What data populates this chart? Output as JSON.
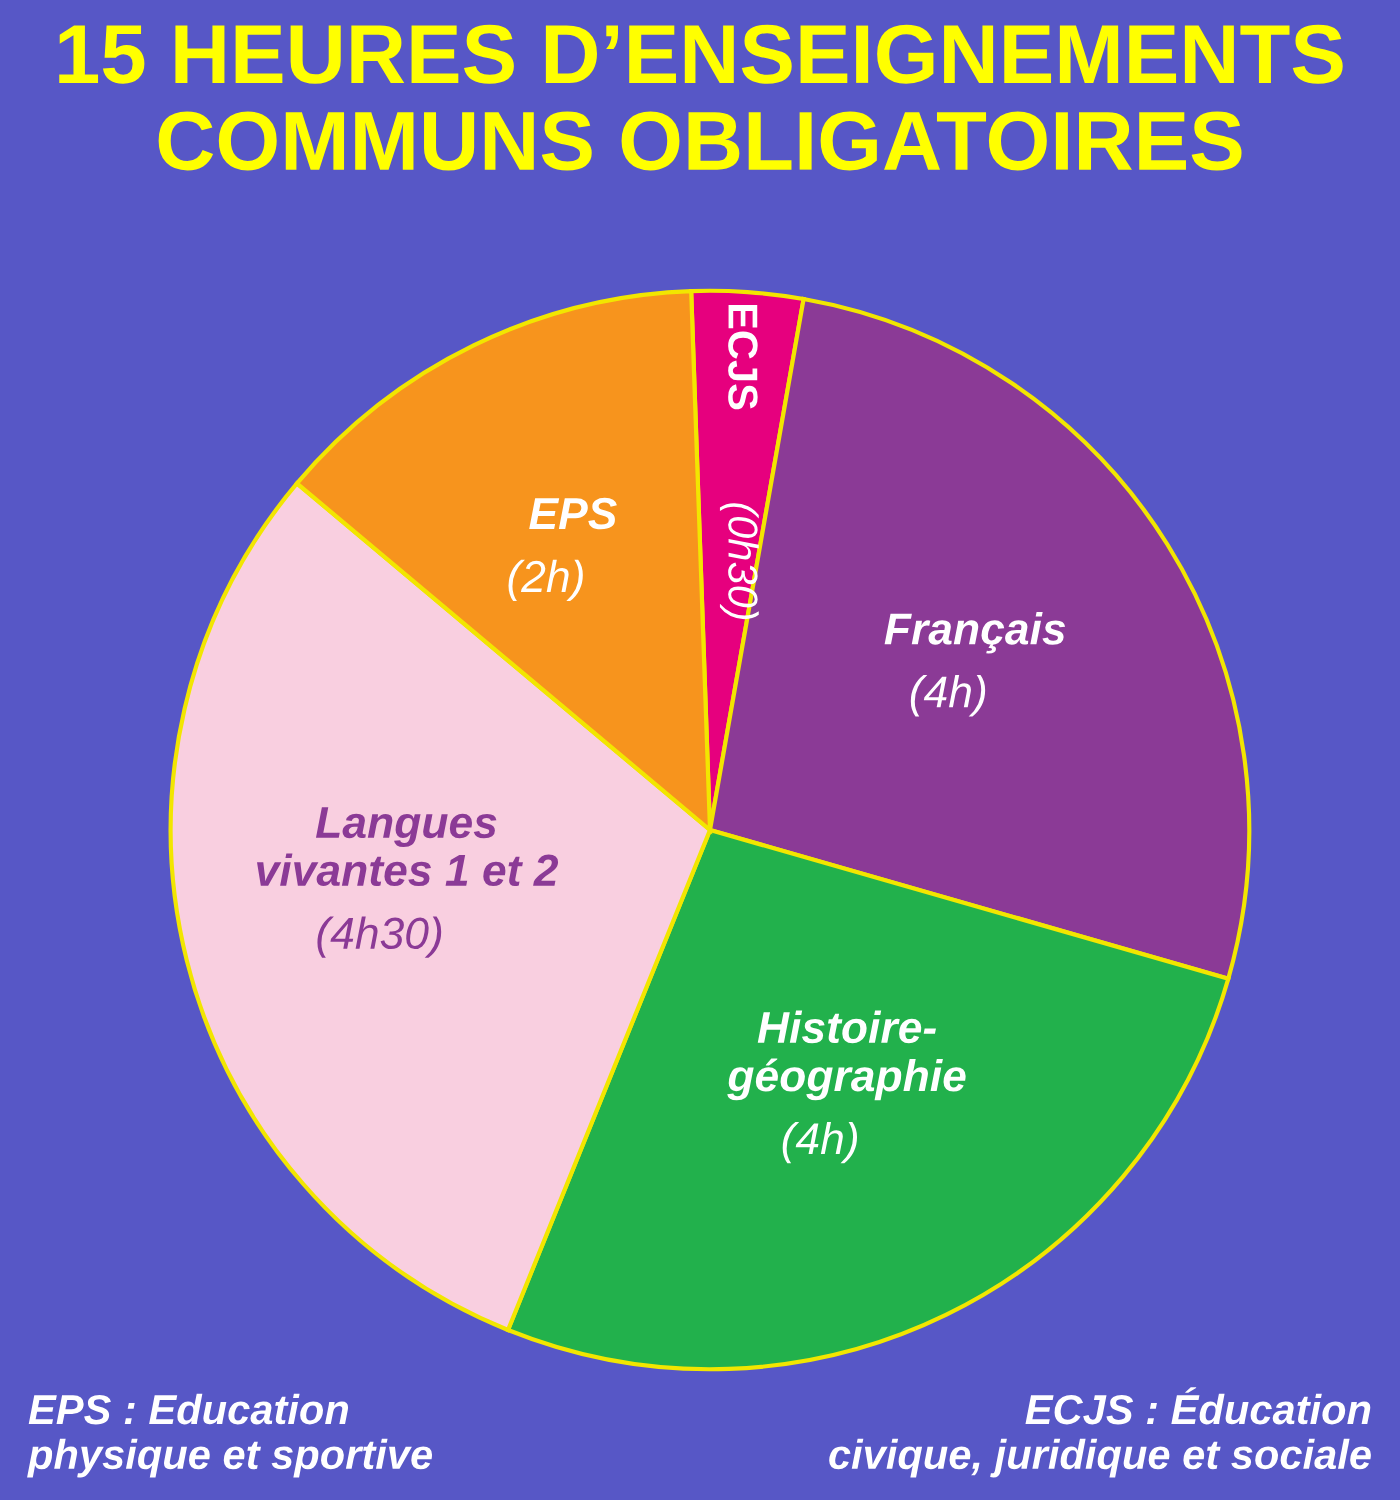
{
  "chart_data": {
    "type": "pie",
    "title": "15 HEURES D’ENSEIGNEMENTS\nCOMMUNS OBLIGATOIRES",
    "categories": [
      "ECJS",
      "Français",
      "Histoire-\ngéographie",
      "Langues\nvivantes 1 et 2",
      "EPS"
    ],
    "values": [
      0.5,
      4,
      4,
      4.5,
      2
    ],
    "value_labels": [
      "(0h30)",
      "(4h)",
      "(4h)",
      "(4h30)",
      "(2h)"
    ],
    "colors": [
      "#e6007e",
      "#8b3a96",
      "#22b14c",
      "#f9cfe0",
      "#f7941d"
    ],
    "annotations": [
      "EPS : Education\nphysique et sportive",
      "ECJS : Éducation\ncivique, juridique et sociale"
    ]
  }
}
